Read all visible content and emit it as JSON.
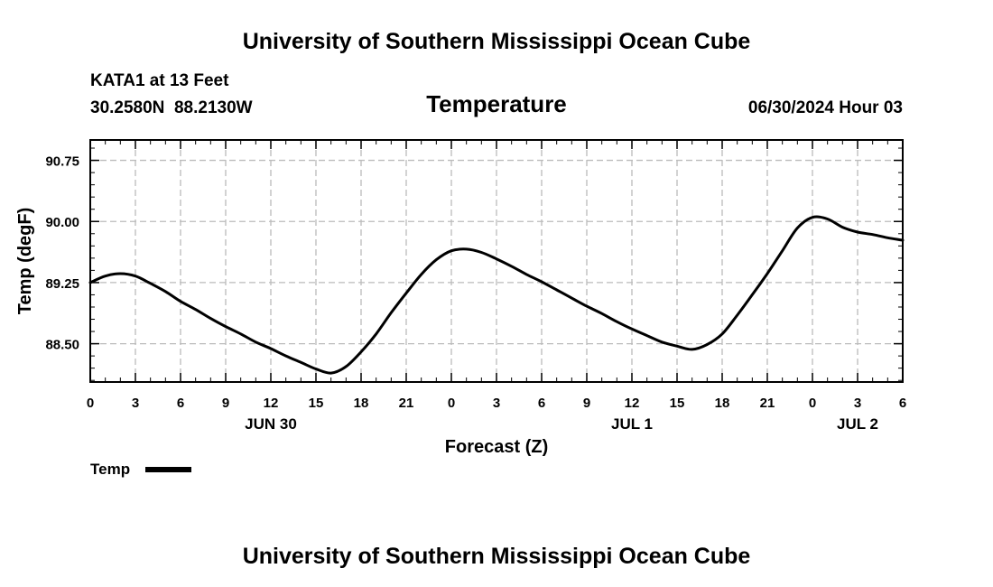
{
  "header": {
    "title_top": "University of Southern Mississippi Ocean Cube",
    "title_bottom": "University of Southern Mississippi Ocean Cube",
    "station": "KATA1 at 13 Feet",
    "coords": "30.2580N  88.2130W",
    "variable": "Temperature",
    "datetime": "06/30/2024 Hour 03"
  },
  "legend": {
    "label": "Temp"
  },
  "colors": {
    "line": "#000000",
    "grid": "#bbbbbb"
  },
  "chart_data": {
    "type": "line",
    "title": "Temperature",
    "xlabel": "Forecast (Z)",
    "ylabel": "Temp (degF)",
    "xlim": [
      0,
      54
    ],
    "ylim": [
      88.03,
      91.0
    ],
    "x_ticks": [
      0,
      3,
      6,
      9,
      12,
      15,
      18,
      21,
      24,
      27,
      30,
      33,
      36,
      39,
      42,
      45,
      48,
      51,
      54
    ],
    "x_tick_labels": [
      "0",
      "3",
      "6",
      "9",
      "12",
      "15",
      "18",
      "21",
      "0",
      "3",
      "6",
      "9",
      "12",
      "15",
      "18",
      "21",
      "0",
      "3",
      "6"
    ],
    "y_ticks": [
      88.5,
      89.25,
      90.0,
      90.75
    ],
    "y_tick_labels": [
      "88.50",
      "89.25",
      "90.00",
      "90.75"
    ],
    "date_labels": [
      {
        "x": 12,
        "label": "JUN 30"
      },
      {
        "x": 36,
        "label": "JUL 1"
      },
      {
        "x": 51,
        "label": "JUL 2"
      }
    ],
    "grid": true,
    "series": [
      {
        "name": "Temp",
        "x": [
          0,
          1,
          2,
          3,
          4,
          5,
          6,
          7,
          8,
          9,
          10,
          11,
          12,
          13,
          14,
          15,
          16,
          17,
          18,
          19,
          20,
          21,
          22,
          23,
          24,
          25,
          26,
          27,
          28,
          29,
          30,
          31,
          32,
          33,
          34,
          35,
          36,
          37,
          38,
          39,
          40,
          41,
          42,
          43,
          44,
          45,
          46,
          47,
          48,
          49,
          50,
          51,
          52,
          53,
          54
        ],
        "values": [
          89.25,
          89.33,
          89.36,
          89.33,
          89.24,
          89.14,
          89.02,
          88.92,
          88.81,
          88.71,
          88.62,
          88.52,
          88.44,
          88.35,
          88.27,
          88.19,
          88.14,
          88.22,
          88.4,
          88.62,
          88.88,
          89.12,
          89.35,
          89.53,
          89.64,
          89.66,
          89.62,
          89.54,
          89.45,
          89.35,
          89.26,
          89.16,
          89.06,
          88.96,
          88.87,
          88.77,
          88.68,
          88.6,
          88.52,
          88.47,
          88.43,
          88.49,
          88.62,
          88.85,
          89.1,
          89.36,
          89.64,
          89.92,
          90.05,
          90.03,
          89.93,
          89.87,
          89.84,
          89.8,
          89.77
        ]
      }
    ]
  }
}
